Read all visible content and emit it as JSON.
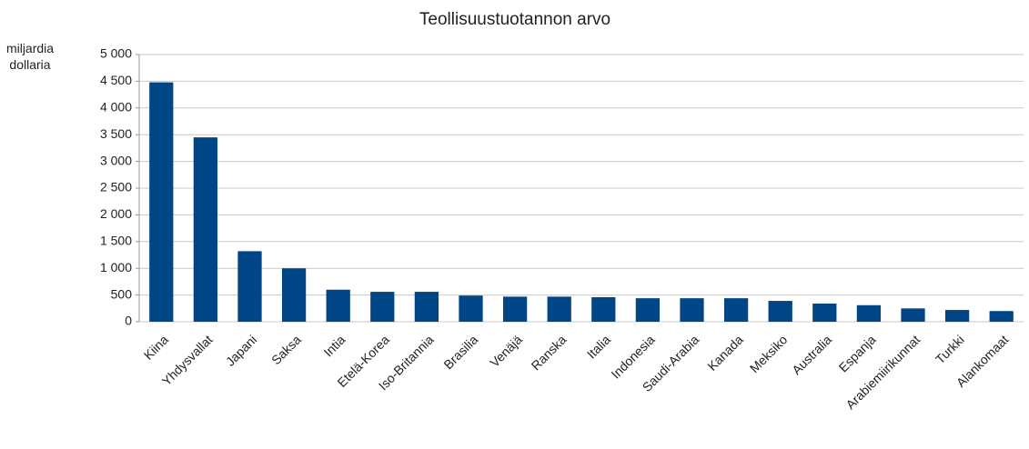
{
  "chart_data": {
    "type": "bar",
    "title": "Teollisuustuotannon arvo",
    "y_label": "miljardia dollaria",
    "categories": [
      "Kiina",
      "Yhdysvallat",
      "Japani",
      "Saksa",
      "Intia",
      "Etelä-Korea",
      "Iso-Britannia",
      "Brasilia",
      "Venäjä",
      "Ranska",
      "Italia",
      "Indonesia",
      "Saudi-Arabia",
      "Kanada",
      "Meksiko",
      "Australia",
      "Espanja",
      "Arabiemiirikunnat",
      "Turkki",
      "Alankomaat"
    ],
    "values": [
      4480,
      3450,
      1320,
      1000,
      600,
      560,
      560,
      490,
      470,
      470,
      460,
      440,
      440,
      440,
      390,
      340,
      310,
      250,
      220,
      200
    ],
    "color": "#004586",
    "ylim": [
      0,
      5000
    ],
    "yticks": [
      0,
      500,
      {
        "value": 1000,
        "label": "1 000"
      },
      {
        "value": 1500,
        "label": "1 500"
      },
      {
        "value": 2000,
        "label": "2 000"
      },
      {
        "value": 2500,
        "label": "2 500"
      },
      {
        "value": 3000,
        "label": "3 000"
      },
      {
        "value": 3500,
        "label": "3 500"
      },
      {
        "value": 4000,
        "label": "4 000"
      },
      {
        "value": 4500,
        "label": "4 500"
      },
      {
        "value": 5000,
        "label": "5 000"
      }
    ],
    "grid": true
  }
}
